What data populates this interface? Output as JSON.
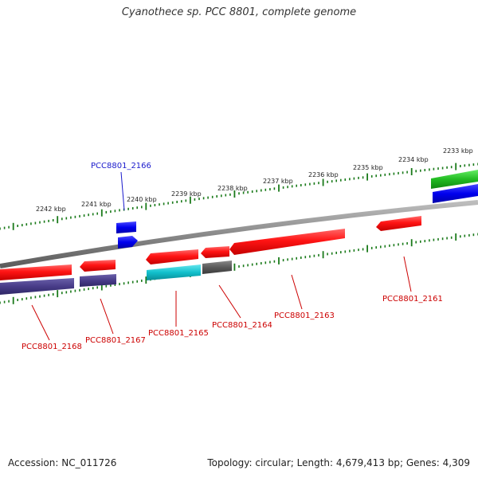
{
  "title": "Cyanothece sp. PCC 8801, complete genome",
  "footer": {
    "accession": "Accession: NC_011726",
    "summary": "Topology: circular; Length: 4,679,413 bp; Genes: 4,309"
  },
  "scale_labels": [
    "2233 kbp",
    "2234 kbp",
    "2235 kbp",
    "2236 kbp",
    "2237 kbp",
    "2238 kbp",
    "2239 kbp",
    "2240 kbp",
    "2241 kbp",
    "2242 kbp"
  ],
  "gene_labels": [
    {
      "text": "PCC8801_2166",
      "color": "#1a1acc"
    },
    {
      "text": "PCC8801_2168",
      "color": "#cc0000"
    },
    {
      "text": "PCC8801_2167",
      "color": "#cc0000"
    },
    {
      "text": "PCC8801_2165",
      "color": "#cc0000"
    },
    {
      "text": "PCC8801_2164",
      "color": "#cc0000"
    },
    {
      "text": "PCC8801_2163",
      "color": "#cc0000"
    },
    {
      "text": "PCC8801_2161",
      "color": "#cc0000"
    }
  ],
  "colors": {
    "backbone": "#808080",
    "scale_ticks": "#1a7a1a",
    "cds_forward": "#ff1a1a",
    "cds_reverse": "#4a3f8a",
    "gene_blue": "#0000ee",
    "gene_green": "#33cc33",
    "gene_cyan": "#22c4cc",
    "gene_gray": "#606060"
  }
}
